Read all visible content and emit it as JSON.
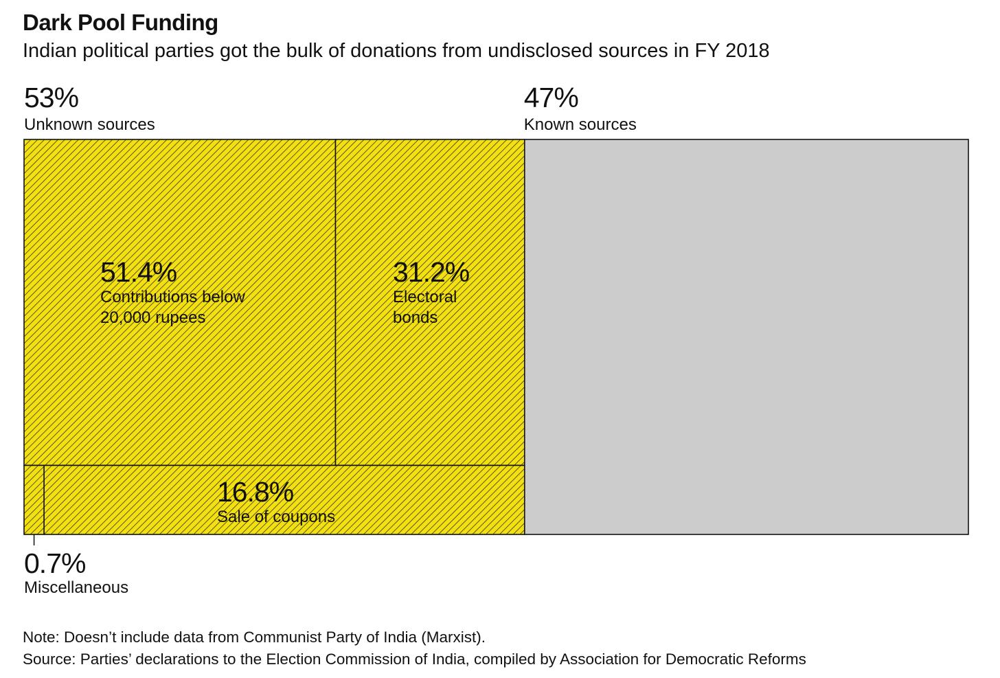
{
  "title": "Dark Pool Funding",
  "subtitle": "Indian political parties got the bulk of donations from undisclosed sources in FY 2018",
  "note": "Note: Doesn’t include data from Communist Party of India (Marxist).",
  "source": "Source: Parties’ declarations to the Election Commission of India, compiled by Association for Democratic Reforms",
  "colors": {
    "unknown_fill": "#f3e012",
    "hatch": "#3a3508",
    "known_fill": "#cccccc",
    "outline": "#111111"
  },
  "chart_data": {
    "type": "treemap",
    "groups": [
      {
        "name": "Unknown sources",
        "value_label": "53%",
        "value": 53,
        "fill": "hatched-yellow",
        "children": [
          {
            "name_lines": [
              "Contributions below",
              "20,000 rupees"
            ],
            "value_label": "51.4%",
            "value": 51.4
          },
          {
            "name_lines": [
              "Electoral",
              "bonds"
            ],
            "value_label": "31.2%",
            "value": 31.2
          },
          {
            "name_lines": [
              "Sale of coupons"
            ],
            "value_label": "16.8%",
            "value": 16.8
          },
          {
            "name_lines": [
              "Miscellaneous"
            ],
            "value_label": "0.7%",
            "value": 0.7
          }
        ]
      },
      {
        "name": "Known sources",
        "value_label": "47%",
        "value": 47,
        "fill": "grey",
        "children": []
      }
    ]
  }
}
